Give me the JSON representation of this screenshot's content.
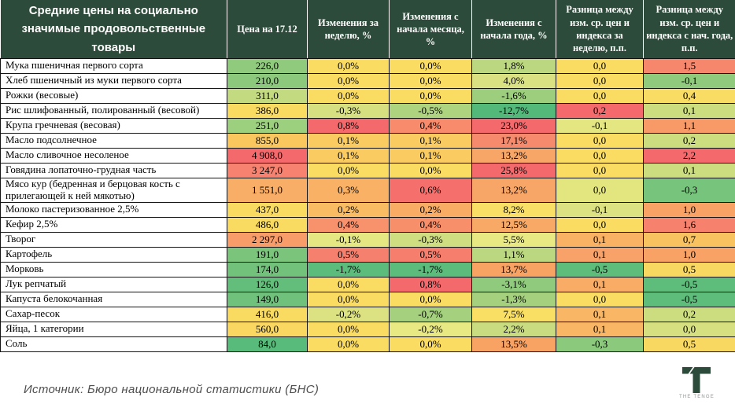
{
  "colors": {
    "header_bg": "#2D4B3A",
    "logo_green": "#2D4B3A",
    "scale_red": "#F4696C",
    "scale_yellow": "#FADC62",
    "scale_green": "#57BB7A"
  },
  "chart_data": {
    "type": "table",
    "title": "Средние цены на социально значимые продовольственные товары",
    "columns": [
      "Цена на 17.12",
      "Изменения за неделю, %",
      "Изменения с начала месяца, %",
      "Изменения с начала года, %",
      "Разница между изм. ср. цен и индекса за неделю, п.п.",
      "Разница между изм. ср. цен и индекса с нач. года, п.п."
    ],
    "rows": [
      {
        "product": "Мука пшеничная первого сорта",
        "values": [
          "226,0",
          "0,0%",
          "0,0%",
          "1,8%",
          "0,0",
          "1,5"
        ],
        "colors": [
          "#90CA7D",
          "#FADC63",
          "#FADC63",
          "#BBD880",
          "#FADC63",
          "#F6876D"
        ]
      },
      {
        "product": "Хлеб пшеничный из муки первого сорта",
        "values": [
          "210,0",
          "0,0%",
          "0,0%",
          "4,0%",
          "0,0",
          "-0,1"
        ],
        "colors": [
          "#8CC97D",
          "#FADC63",
          "#FADC63",
          "#D9E182",
          "#FADC63",
          "#90CB7D"
        ]
      },
      {
        "product": "Рожки (весовые)",
        "values": [
          "311,0",
          "0,0%",
          "0,0%",
          "-1,6%",
          "0,0",
          "0,4"
        ],
        "colors": [
          "#C3DA80",
          "#FADC63",
          "#FADC63",
          "#9CCE7E",
          "#FADC63",
          "#F9DC64"
        ]
      },
      {
        "product": "Рис шлифованный, полированный (весовой)",
        "values": [
          "386,0",
          "-0,3%",
          "-0,5%",
          "-12,7%",
          "0,2",
          "0,1"
        ],
        "colors": [
          "#FADB62",
          "#D7E081",
          "#AFD47F",
          "#52B97B",
          "#F4696C",
          "#CCDD80"
        ]
      },
      {
        "product": "Крупа гречневая (весовая)",
        "values": [
          "251,0",
          "0,8%",
          "0,4%",
          "23,0%",
          "-0,1",
          "1,1"
        ],
        "colors": [
          "#9CCF7E",
          "#F4696C",
          "#F78B6B",
          "#F4696C",
          "#E3E681",
          "#F89A67"
        ]
      },
      {
        "product": "Масло подсолнечное",
        "values": [
          "855,0",
          "0,1%",
          "0,1%",
          "17,1%",
          "0,0",
          "0,2"
        ],
        "colors": [
          "#F9C75E",
          "#F9CB60",
          "#F9CB60",
          "#F68A6D",
          "#FADC63",
          "#CCDD80"
        ]
      },
      {
        "product": "Масло сливочное несоленое",
        "values": [
          "4 908,0",
          "0,1%",
          "0,1%",
          "13,2%",
          "0,0",
          "2,2"
        ],
        "colors": [
          "#F4696C",
          "#F9CB60",
          "#F9CB60",
          "#F8A668",
          "#FADC63",
          "#F4696C"
        ]
      },
      {
        "product": "Говядина лопаточно-грудная часть",
        "values": [
          "3 247,0",
          "0,0%",
          "0,0%",
          "25,8%",
          "0,0",
          "0,1"
        ],
        "colors": [
          "#F6826F",
          "#FADC63",
          "#FADC63",
          "#F4696C",
          "#FADC63",
          "#CCDD80"
        ]
      },
      {
        "product": "Мясо кур (бедренная и берцовая кость с прилегающей к ней мякотью)",
        "values": [
          "1 551,0",
          "0,3%",
          "0,6%",
          "13,2%",
          "0,0",
          "-0,3"
        ],
        "colors": [
          "#F9AE68",
          "#F8B165",
          "#F5706C",
          "#F8A668",
          "#E3E57F",
          "#77C47C"
        ]
      },
      {
        "product": "Молоко пастеризованное 2,5%",
        "values": [
          "437,0",
          "0,2%",
          "0,2%",
          "8,2%",
          "-0,1",
          "1,0"
        ],
        "colors": [
          "#FADB62",
          "#F9BC62",
          "#F9AC64",
          "#F9DF65",
          "#DCE281",
          "#F8A265"
        ]
      },
      {
        "product": "Кефир 2,5%",
        "values": [
          "486,0",
          "0,4%",
          "0,4%",
          "12,5%",
          "0,0",
          "1,6"
        ],
        "colors": [
          "#FADB62",
          "#F7926C",
          "#F78F6A",
          "#F8A966",
          "#FADC63",
          "#F6816C"
        ]
      },
      {
        "product": "Творог",
        "values": [
          "2 297,0",
          "-0,1%",
          "-0,3%",
          "5,5%",
          "0,1",
          "0,7"
        ],
        "colors": [
          "#F89D6A",
          "#E5E782",
          "#CFDE81",
          "#E8E982",
          "#F9B164",
          "#F9C261"
        ]
      },
      {
        "product": "Картофель",
        "values": [
          "191,0",
          "0,5%",
          "0,5%",
          "1,1%",
          "0,1",
          "1,0"
        ],
        "colors": [
          "#7BC47C",
          "#F6806E",
          "#F67E6D",
          "#BBD880",
          "#F8A26A",
          "#F8A265"
        ]
      },
      {
        "product": "Морковь",
        "values": [
          "174,0",
          "-1,7%",
          "-1,7%",
          "13,7%",
          "-0,5",
          "0,5"
        ],
        "colors": [
          "#72C27B",
          "#5BBC7B",
          "#5BBC7B",
          "#F8A264",
          "#5FBD7B",
          "#F9D862"
        ]
      },
      {
        "product": "Лук репчатый",
        "values": [
          "126,0",
          "0,0%",
          "0,8%",
          "-3,1%",
          "0,1",
          "-0,5"
        ],
        "colors": [
          "#63BE7B",
          "#FADC63",
          "#F4696C",
          "#8FCA7D",
          "#F8AC66",
          "#5FBD7B"
        ]
      },
      {
        "product": "Капуста белокочанная",
        "values": [
          "149,0",
          "0,0%",
          "0,0%",
          "-1,3%",
          "0,0",
          "-0,5"
        ],
        "colors": [
          "#6FC17B",
          "#FADC63",
          "#FADC63",
          "#A5D17E",
          "#FADC63",
          "#5FBD7B"
        ]
      },
      {
        "product": "Сахар-песок",
        "values": [
          "416,0",
          "-0,2%",
          "-0,7%",
          "7,5%",
          "0,1",
          "0,2"
        ],
        "colors": [
          "#FADB62",
          "#DCE282",
          "#A5D17E",
          "#F9E065",
          "#F9B766",
          "#CCDD80"
        ]
      },
      {
        "product": "Яйца, 1 категории",
        "values": [
          "560,0",
          "0,0%",
          "-0,2%",
          "2,2%",
          "0,1",
          "0,0"
        ],
        "colors": [
          "#F9D761",
          "#FADC63",
          "#E8E982",
          "#CADC80",
          "#F9B766",
          "#D6E081"
        ]
      },
      {
        "product": "Соль",
        "values": [
          "84,0",
          "0,0%",
          "0,0%",
          "13,5%",
          "-0,3",
          "0,5"
        ],
        "colors": [
          "#58BB7B",
          "#FADC63",
          "#FADC63",
          "#F8A264",
          "#8BC97D",
          "#F9D862"
        ]
      }
    ]
  },
  "footer": {
    "source": "Источник: Бюро национальной статистики (БНС)",
    "logo_text": "THE TENGE"
  }
}
